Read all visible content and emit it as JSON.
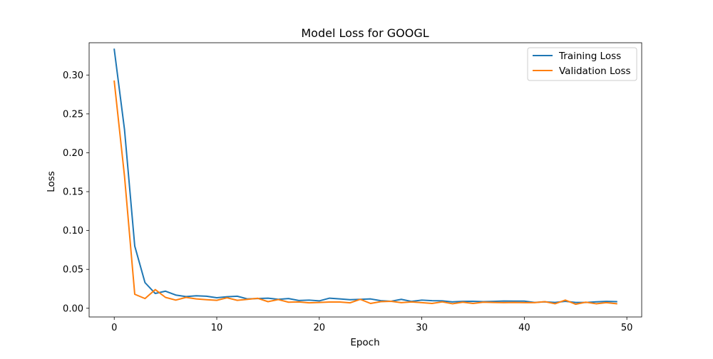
{
  "chart_data": {
    "type": "line",
    "title": "Model Loss for GOOGL",
    "xlabel": "Epoch",
    "ylabel": "Loss",
    "xlim": [
      -2.45,
      51.45
    ],
    "ylim": [
      -0.0112,
      0.3415
    ],
    "xticks": [
      0,
      10,
      20,
      30,
      40,
      50
    ],
    "yticks": [
      0.0,
      0.05,
      0.1,
      0.15,
      0.2,
      0.25,
      0.3
    ],
    "xtick_labels": [
      "0",
      "10",
      "20",
      "30",
      "40",
      "50"
    ],
    "ytick_labels": [
      "0.00",
      "0.05",
      "0.10",
      "0.15",
      "0.20",
      "0.25",
      "0.30"
    ],
    "grid": false,
    "legend_position": "top-right",
    "x": [
      0,
      1,
      2,
      3,
      4,
      5,
      6,
      7,
      8,
      9,
      10,
      11,
      12,
      13,
      14,
      15,
      16,
      17,
      18,
      19,
      20,
      21,
      22,
      23,
      24,
      25,
      26,
      27,
      28,
      29,
      30,
      31,
      32,
      33,
      34,
      35,
      36,
      37,
      38,
      39,
      40,
      41,
      42,
      43,
      44,
      45,
      46,
      47,
      48,
      49
    ],
    "series": [
      {
        "name": "Training Loss",
        "color": "#1f77b4",
        "values": [
          0.333,
          0.23,
          0.08,
          0.033,
          0.019,
          0.022,
          0.017,
          0.015,
          0.016,
          0.0155,
          0.0135,
          0.0148,
          0.0155,
          0.012,
          0.0125,
          0.013,
          0.0115,
          0.0125,
          0.01,
          0.0105,
          0.0095,
          0.013,
          0.012,
          0.011,
          0.0115,
          0.012,
          0.0098,
          0.009,
          0.0115,
          0.0088,
          0.0105,
          0.0098,
          0.0095,
          0.0082,
          0.0088,
          0.009,
          0.0085,
          0.0088,
          0.0093,
          0.0092,
          0.0092,
          0.0075,
          0.0083,
          0.0075,
          0.009,
          0.0075,
          0.0075,
          0.0083,
          0.0088,
          0.0085
        ]
      },
      {
        "name": "Validation Loss",
        "color": "#ff7f0e",
        "values": [
          0.292,
          0.17,
          0.018,
          0.0125,
          0.024,
          0.014,
          0.0105,
          0.014,
          0.012,
          0.011,
          0.0102,
          0.0135,
          0.0102,
          0.0115,
          0.0128,
          0.0085,
          0.0112,
          0.0078,
          0.0082,
          0.007,
          0.0075,
          0.008,
          0.008,
          0.007,
          0.0115,
          0.0062,
          0.0085,
          0.009,
          0.0072,
          0.0082,
          0.0072,
          0.0062,
          0.0082,
          0.0058,
          0.0078,
          0.0062,
          0.0078,
          0.0075,
          0.0072,
          0.0075,
          0.0072,
          0.0072,
          0.0085,
          0.0058,
          0.0105,
          0.0052,
          0.0078,
          0.0058,
          0.0072,
          0.0058
        ]
      }
    ]
  }
}
